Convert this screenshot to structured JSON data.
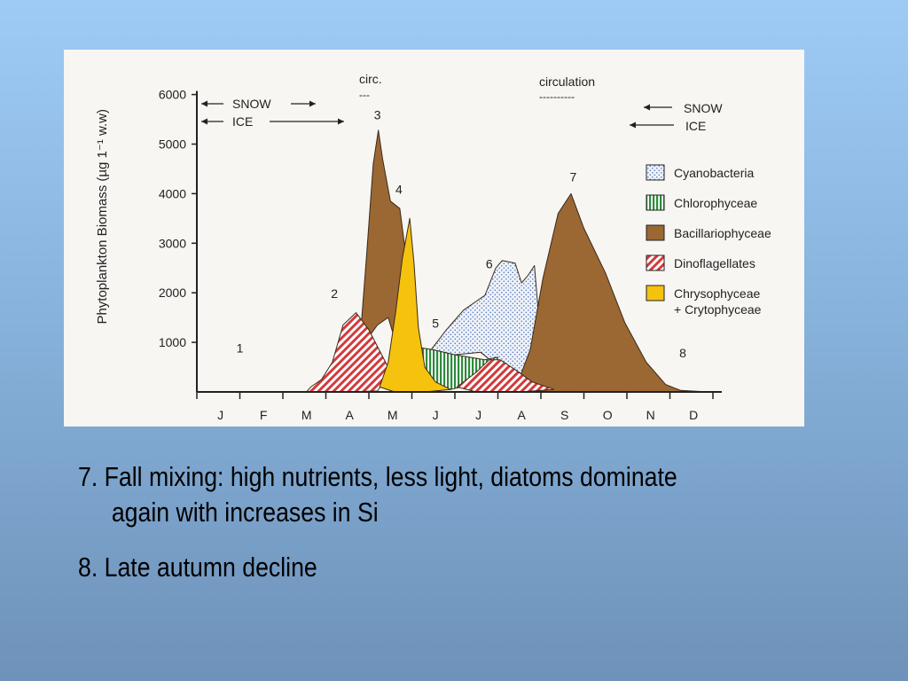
{
  "chart_data": {
    "type": "area",
    "ylabel": "Phytoplankton Biomass (µg 1⁻¹ w.w)",
    "yticks": [
      1000,
      2000,
      3000,
      4000,
      5000,
      6000
    ],
    "ylim": [
      0,
      6000
    ],
    "categories": [
      "J",
      "F",
      "M",
      "A",
      "M",
      "J",
      "J",
      "A",
      "S",
      "O",
      "N",
      "D"
    ],
    "xlim": [
      0,
      12
    ],
    "annotations": {
      "snow_left": "SNOW",
      "ice_left": "ICE",
      "snow_right": "SNOW",
      "ice_right": "ICE",
      "circ_spring": "circ.",
      "circ_spring_dash": "---",
      "circ_fall": "circulation",
      "circ_fall_dash": "----------"
    },
    "stage_labels": [
      {
        "label": "1",
        "x": 1.0,
        "y": 800
      },
      {
        "label": "2",
        "x": 3.2,
        "y": 1900
      },
      {
        "label": "3",
        "x": 4.2,
        "y": 5500
      },
      {
        "label": "4",
        "x": 4.7,
        "y": 4000
      },
      {
        "label": "5",
        "x": 5.55,
        "y": 1300
      },
      {
        "label": "6",
        "x": 6.8,
        "y": 2500
      },
      {
        "label": "7",
        "x": 8.75,
        "y": 4250
      },
      {
        "label": "8",
        "x": 11.3,
        "y": 700
      }
    ],
    "series": [
      {
        "name": "Cyanobacteria",
        "color": "#dbe6f5",
        "pattern": "dots",
        "points": [
          [
            5.4,
            800
          ],
          [
            5.8,
            1250
          ],
          [
            6.2,
            1650
          ],
          [
            6.7,
            1950
          ],
          [
            6.95,
            2500
          ],
          [
            7.1,
            2650
          ],
          [
            7.4,
            2600
          ],
          [
            7.55,
            2200
          ],
          [
            7.7,
            2350
          ],
          [
            7.85,
            2550
          ],
          [
            8.0,
            1000
          ],
          [
            7.5,
            150
          ],
          [
            7.1,
            450
          ],
          [
            6.6,
            800
          ],
          [
            6.0,
            750
          ],
          [
            5.5,
            600
          ]
        ]
      },
      {
        "name": "Chlorophyceae",
        "color": "#2e8b3d",
        "pattern": "vertical-stripes",
        "points": [
          [
            5.15,
            900
          ],
          [
            5.5,
            850
          ],
          [
            6.0,
            750
          ],
          [
            6.7,
            650
          ],
          [
            7.0,
            700
          ],
          [
            6.85,
            400
          ],
          [
            6.4,
            150
          ],
          [
            5.9,
            50
          ],
          [
            5.4,
            100
          ],
          [
            5.15,
            200
          ]
        ]
      },
      {
        "name": "Bacillariophyceae",
        "color": "#9b6733",
        "pattern": "solid",
        "points": [
          [
            3.8,
            1100
          ],
          [
            3.95,
            2800
          ],
          [
            4.1,
            4600
          ],
          [
            4.22,
            5280
          ],
          [
            4.32,
            4700
          ],
          [
            4.5,
            3850
          ],
          [
            4.72,
            3700
          ],
          [
            4.9,
            2500
          ],
          [
            5.0,
            950
          ],
          [
            5.2,
            300
          ],
          [
            5.4,
            100
          ],
          [
            5.05,
            50
          ],
          [
            4.8,
            500
          ],
          [
            4.45,
            1500
          ],
          [
            4.2,
            1350
          ],
          [
            3.95,
            1050
          ]
        ]
      },
      {
        "name": "Bacillariophyceae",
        "color": "#9b6733",
        "pattern": "solid",
        "points": [
          [
            7.4,
            50
          ],
          [
            7.75,
            850
          ],
          [
            8.05,
            2300
          ],
          [
            8.4,
            3600
          ],
          [
            8.7,
            4000
          ],
          [
            9.0,
            3300
          ],
          [
            9.5,
            2400
          ],
          [
            9.95,
            1400
          ],
          [
            10.45,
            600
          ],
          [
            10.9,
            150
          ],
          [
            11.25,
            30
          ],
          [
            11.9,
            0
          ],
          [
            9.0,
            0
          ],
          [
            7.9,
            0
          ]
        ]
      },
      {
        "name": "Dinoflagellates",
        "color": "#d23a3a",
        "pattern": "diagonal-stripes",
        "points": [
          [
            2.55,
            0
          ],
          [
            2.65,
            100
          ],
          [
            2.9,
            250
          ],
          [
            3.15,
            600
          ],
          [
            3.4,
            1350
          ],
          [
            3.7,
            1600
          ],
          [
            4.0,
            1250
          ],
          [
            4.3,
            750
          ],
          [
            4.5,
            400
          ],
          [
            4.2,
            20
          ],
          [
            3.5,
            0
          ]
        ]
      },
      {
        "name": "Dinoflagellates",
        "color": "#d23a3a",
        "pattern": "diagonal-stripes",
        "points": [
          [
            6.05,
            100
          ],
          [
            6.5,
            400
          ],
          [
            6.8,
            650
          ],
          [
            7.05,
            650
          ],
          [
            7.4,
            450
          ],
          [
            7.8,
            200
          ],
          [
            8.3,
            50
          ],
          [
            7.5,
            0
          ],
          [
            6.5,
            0
          ]
        ]
      },
      {
        "name": "Chrysophyceae + Crytophyceae",
        "color": "#f5c20d",
        "pattern": "solid",
        "points": [
          [
            4.25,
            100
          ],
          [
            4.45,
            600
          ],
          [
            4.62,
            1600
          ],
          [
            4.78,
            2700
          ],
          [
            4.95,
            3500
          ],
          [
            5.05,
            2600
          ],
          [
            5.15,
            1300
          ],
          [
            5.3,
            500
          ],
          [
            5.55,
            200
          ],
          [
            5.9,
            50
          ],
          [
            5.3,
            0
          ],
          [
            4.6,
            0
          ]
        ]
      }
    ],
    "legend": [
      {
        "label": "Cyanobacteria",
        "color": "#dbe6f5",
        "pattern": "dots"
      },
      {
        "label": "Chlorophyceae",
        "color": "#2e8b3d",
        "pattern": "vertical-stripes"
      },
      {
        "label": "Bacillariophyceae",
        "color": "#9b6733",
        "pattern": "solid"
      },
      {
        "label": "Dinoflagellates",
        "color": "#d23a3a",
        "pattern": "diagonal-stripes"
      },
      {
        "label": "Chrysophyceae",
        "label2": "+ Crytophyceae",
        "color": "#f5c20d",
        "pattern": "solid"
      }
    ],
    "legend_position": "right"
  },
  "bullets": {
    "b1_line1": "7. Fall mixing: high nutrients, less light, diatoms dominate",
    "b1_line2": "again with increases in Si",
    "b2": "8. Late autumn decline"
  }
}
